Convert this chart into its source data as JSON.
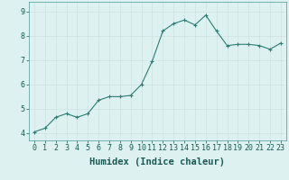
{
  "x": [
    0,
    1,
    2,
    3,
    4,
    5,
    6,
    7,
    8,
    9,
    10,
    11,
    12,
    13,
    14,
    15,
    16,
    17,
    18,
    19,
    20,
    21,
    22,
    23
  ],
  "y": [
    4.05,
    4.2,
    4.65,
    4.8,
    4.65,
    4.8,
    5.35,
    5.5,
    5.5,
    5.55,
    6.0,
    6.95,
    8.2,
    8.5,
    8.65,
    8.45,
    8.85,
    8.2,
    7.6,
    7.65,
    7.65,
    7.6,
    7.45,
    7.7
  ],
  "xlabel": "Humidex (Indice chaleur)",
  "xlim_min": -0.5,
  "xlim_max": 23.5,
  "ylim_min": 3.7,
  "ylim_max": 9.4,
  "yticks": [
    4,
    5,
    6,
    7,
    8,
    9
  ],
  "xticks": [
    0,
    1,
    2,
    3,
    4,
    5,
    6,
    7,
    8,
    9,
    10,
    11,
    12,
    13,
    14,
    15,
    16,
    17,
    18,
    19,
    20,
    21,
    22,
    23
  ],
  "xtick_labels": [
    "0",
    "1",
    "2",
    "3",
    "4",
    "5",
    "6",
    "7",
    "8",
    "9",
    "10",
    "11",
    "12",
    "13",
    "14",
    "15",
    "16",
    "17",
    "18",
    "19",
    "20",
    "21",
    "22",
    "23"
  ],
  "line_color": "#2d7d72",
  "bg_color": "#ddf2f0",
  "grid_color_major": "#c8dede",
  "grid_color_minor": "#ddeaea",
  "xlabel_fontsize": 7.5,
  "tick_fontsize": 6.0,
  "fig_width": 3.2,
  "fig_height": 2.0,
  "dpi": 100
}
